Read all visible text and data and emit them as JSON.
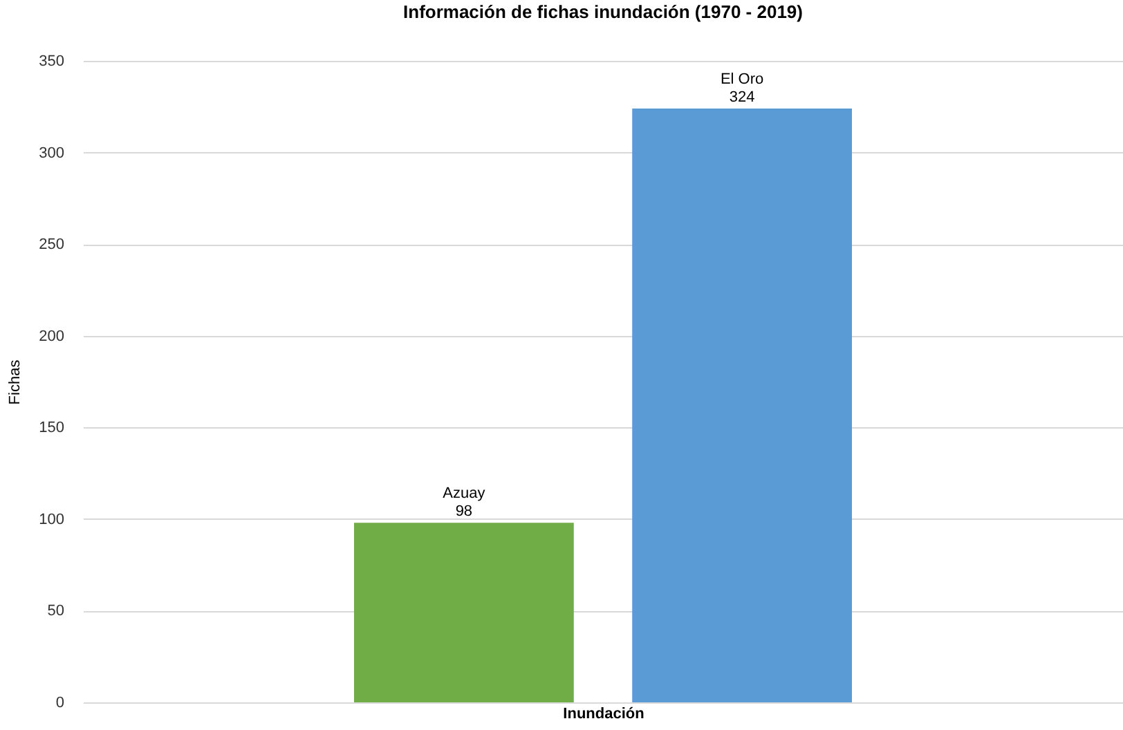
{
  "chart_data": {
    "type": "bar",
    "title": "Información de fichas inundación (1970 - 2019)",
    "xlabel": "Inundación",
    "ylabel": "Fichas",
    "categories": [
      null
    ],
    "series": [
      {
        "name": "Azuay",
        "color": "#70ad47",
        "values": [
          98
        ]
      },
      {
        "name": "El Oro",
        "color": "#5b9bd5",
        "values": [
          324
        ]
      }
    ],
    "ylim": [
      0,
      350
    ],
    "yticks": [
      0,
      50,
      100,
      150,
      200,
      250,
      300,
      350
    ],
    "grid": "y",
    "data_labels": true,
    "legend": false,
    "tick_labels": "y"
  }
}
